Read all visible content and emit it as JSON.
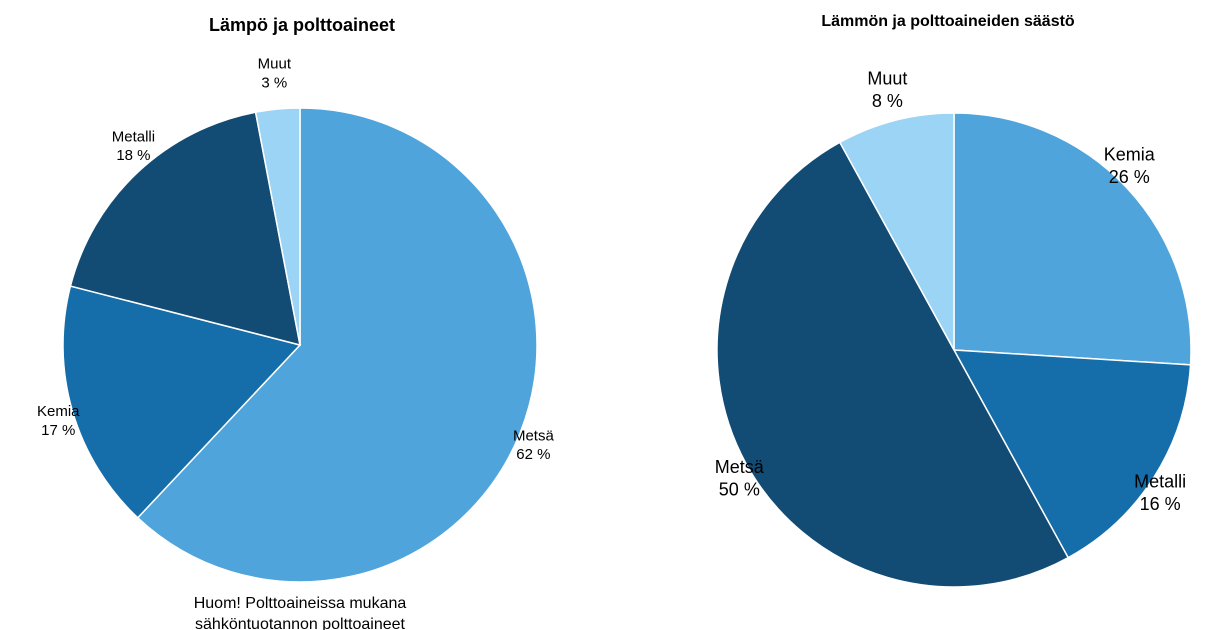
{
  "chart_data": [
    {
      "type": "pie",
      "title": "Lämpö ja polttoaineet",
      "categories": [
        "Metsä",
        "Kemia",
        "Metalli",
        "Muut"
      ],
      "values": [
        62,
        17,
        18,
        3
      ],
      "value_labels": [
        "62 %",
        "17 %",
        "18 %",
        "3 %"
      ],
      "colors": [
        "#4ea4db",
        "#156daa",
        "#124b73",
        "#9bd4f5"
      ],
      "annotation": [
        "Huom! Polttoaineissa mukana",
        "sähköntuotannon polttoaineet"
      ]
    },
    {
      "type": "pie",
      "title": "Lämmön ja polttoaineiden säästö",
      "categories": [
        "Kemia",
        "Metalli",
        "Metsä",
        "Muut"
      ],
      "values": [
        26,
        16,
        50,
        8
      ],
      "value_labels": [
        "26 %",
        "16 %",
        "50 %",
        "8 %"
      ],
      "colors": [
        "#4ea4db",
        "#156daa",
        "#124b73",
        "#9bd4f5"
      ]
    }
  ]
}
